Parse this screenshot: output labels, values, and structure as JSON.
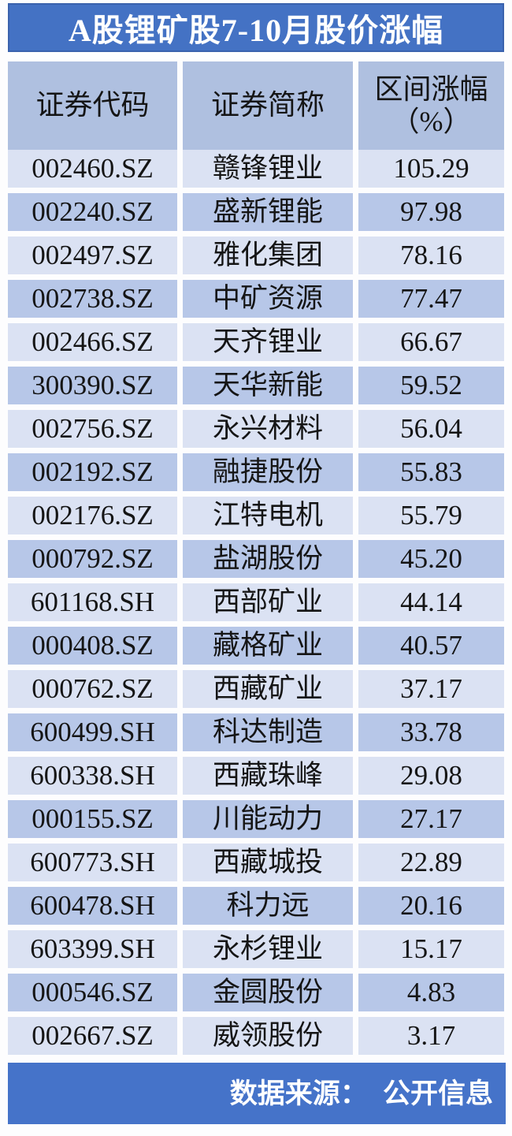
{
  "title": "A股锂矿股7-10月股价涨幅",
  "table": {
    "headers": {
      "code": "证券代码",
      "name": "证券简称",
      "change_line1": "区间涨幅",
      "change_line2": "（%）"
    },
    "rows": [
      {
        "code": "002460.SZ",
        "name": "赣锋锂业",
        "change": "105.29"
      },
      {
        "code": "002240.SZ",
        "name": "盛新锂能",
        "change": "97.98"
      },
      {
        "code": "002497.SZ",
        "name": "雅化集团",
        "change": "78.16"
      },
      {
        "code": "002738.SZ",
        "name": "中矿资源",
        "change": "77.47"
      },
      {
        "code": "002466.SZ",
        "name": "天齐锂业",
        "change": "66.67"
      },
      {
        "code": "300390.SZ",
        "name": "天华新能",
        "change": "59.52"
      },
      {
        "code": "002756.SZ",
        "name": "永兴材料",
        "change": "56.04"
      },
      {
        "code": "002192.SZ",
        "name": "融捷股份",
        "change": "55.83"
      },
      {
        "code": "002176.SZ",
        "name": "江特电机",
        "change": "55.79"
      },
      {
        "code": "000792.SZ",
        "name": "盐湖股份",
        "change": "45.20"
      },
      {
        "code": "601168.SH",
        "name": "西部矿业",
        "change": "44.14"
      },
      {
        "code": "000408.SZ",
        "name": "藏格矿业",
        "change": "40.57"
      },
      {
        "code": "000762.SZ",
        "name": "西藏矿业",
        "change": "37.17"
      },
      {
        "code": "600499.SH",
        "name": "科达制造",
        "change": "33.78"
      },
      {
        "code": "600338.SH",
        "name": "西藏珠峰",
        "change": "29.08"
      },
      {
        "code": "000155.SZ",
        "name": "川能动力",
        "change": "27.17"
      },
      {
        "code": "600773.SH",
        "name": "西藏城投",
        "change": "22.89"
      },
      {
        "code": "600478.SH",
        "name": "科力远",
        "change": "20.16"
      },
      {
        "code": "603399.SH",
        "name": "永杉锂业",
        "change": "15.17"
      },
      {
        "code": "000546.SZ",
        "name": "金圆股份",
        "change": "4.83"
      },
      {
        "code": "002667.SZ",
        "name": "威领股份",
        "change": "3.17"
      }
    ]
  },
  "footer": {
    "source_label": "数据来源：",
    "source_value": "公开信息"
  },
  "colors": {
    "accent_blue": "#4472c4",
    "header_bg": "#afc0e0",
    "row_light_bg": "#dbe2f3",
    "row_dark_bg": "#b7c7e8",
    "title_text": "#ffffff",
    "cell_text": "#151515"
  },
  "chart_data": {
    "type": "table",
    "title": "A股锂矿股7-10月股价涨幅",
    "columns": [
      "证券代码",
      "证券简称",
      "区间涨幅（%）"
    ],
    "rows": [
      [
        "002460.SZ",
        "赣锋锂业",
        105.29
      ],
      [
        "002240.SZ",
        "盛新锂能",
        97.98
      ],
      [
        "002497.SZ",
        "雅化集团",
        78.16
      ],
      [
        "002738.SZ",
        "中矿资源",
        77.47
      ],
      [
        "002466.SZ",
        "天齐锂业",
        66.67
      ],
      [
        "300390.SZ",
        "天华新能",
        59.52
      ],
      [
        "002756.SZ",
        "永兴材料",
        56.04
      ],
      [
        "002192.SZ",
        "融捷股份",
        55.83
      ],
      [
        "002176.SZ",
        "江特电机",
        55.79
      ],
      [
        "000792.SZ",
        "盐湖股份",
        45.2
      ],
      [
        "601168.SH",
        "西部矿业",
        44.14
      ],
      [
        "000408.SZ",
        "藏格矿业",
        40.57
      ],
      [
        "000762.SZ",
        "西藏矿业",
        37.17
      ],
      [
        "600499.SH",
        "科达制造",
        33.78
      ],
      [
        "600338.SH",
        "西藏珠峰",
        29.08
      ],
      [
        "000155.SZ",
        "川能动力",
        27.17
      ],
      [
        "600773.SH",
        "西藏城投",
        22.89
      ],
      [
        "600478.SH",
        "科力远",
        20.16
      ],
      [
        "603399.SH",
        "永杉锂业",
        15.17
      ],
      [
        "000546.SZ",
        "金圆股份",
        4.83
      ],
      [
        "002667.SZ",
        "威领股份",
        3.17
      ]
    ],
    "source_note": "数据来源：公开信息",
    "layout": "header row light-blue; data rows alternate light/dark blue; title and source bands in solid blue"
  }
}
